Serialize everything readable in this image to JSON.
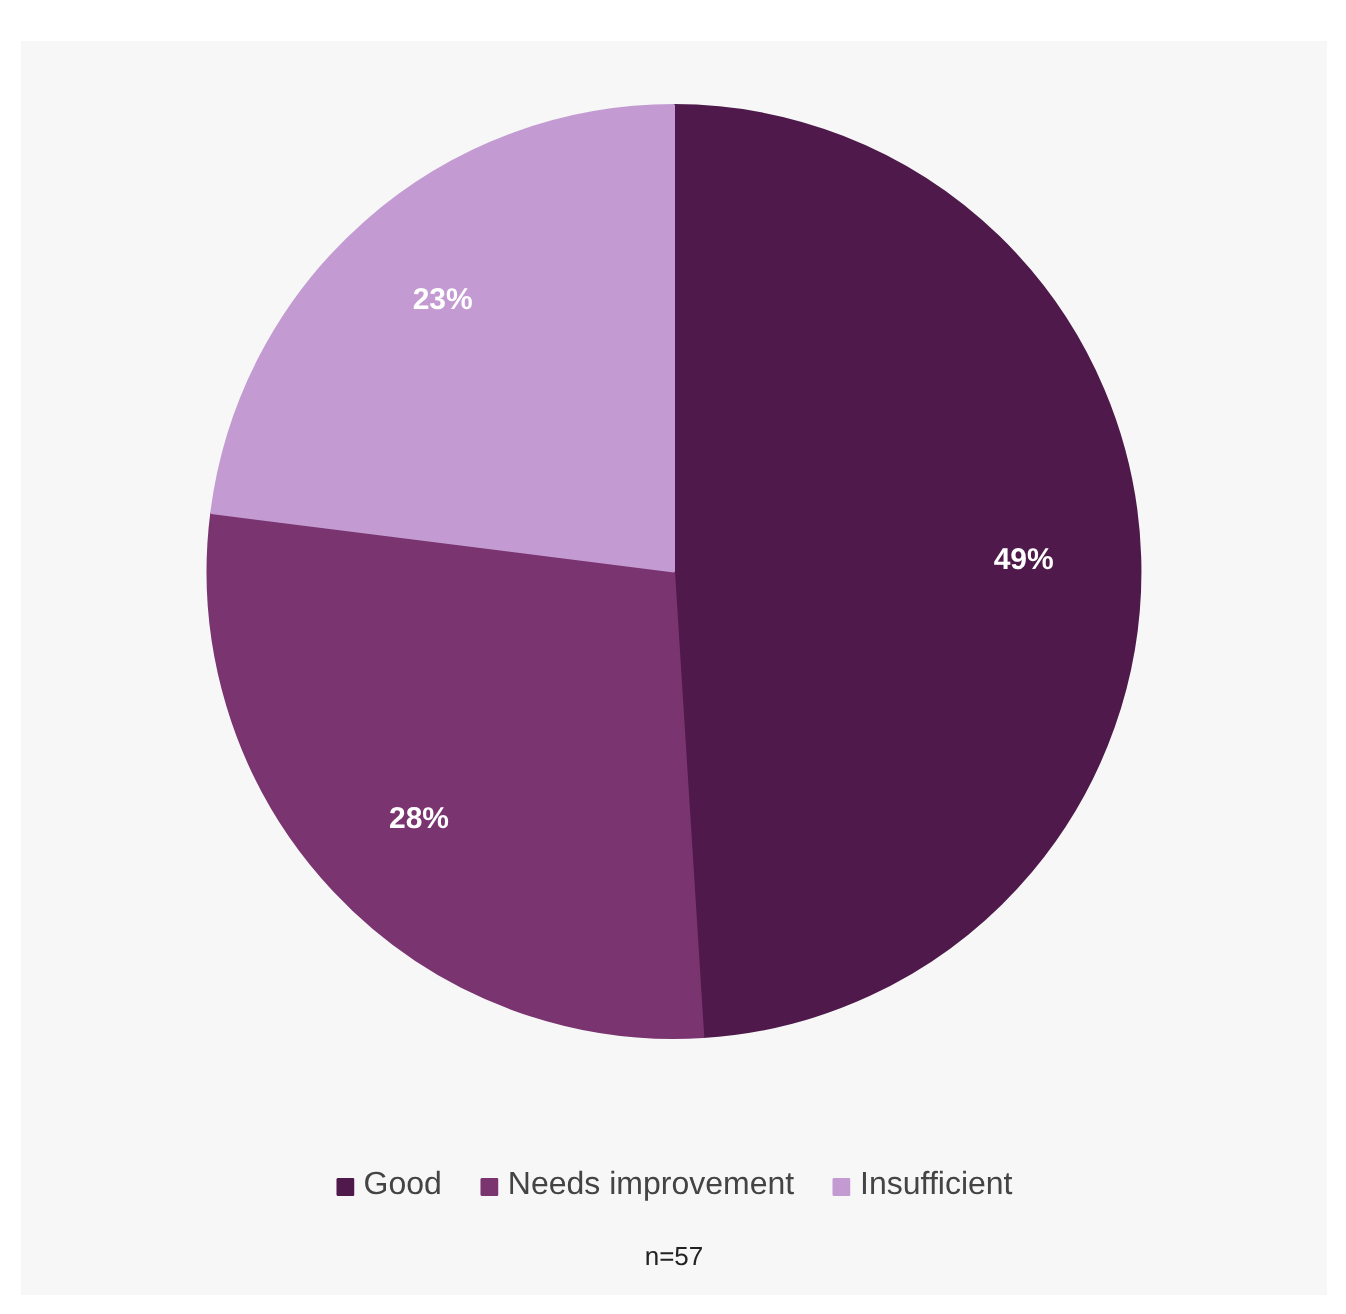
{
  "chart_data": {
    "type": "pie",
    "categories": [
      "Good",
      "Needs improvement",
      "Insufficient"
    ],
    "values": [
      49,
      28,
      23
    ],
    "colors": [
      "#4f1a4b",
      "#7a3470",
      "#c39bd2"
    ],
    "value_labels": [
      "49%",
      "28%",
      "23%"
    ],
    "legend": "bottom",
    "annotations": [
      "n=57"
    ]
  }
}
